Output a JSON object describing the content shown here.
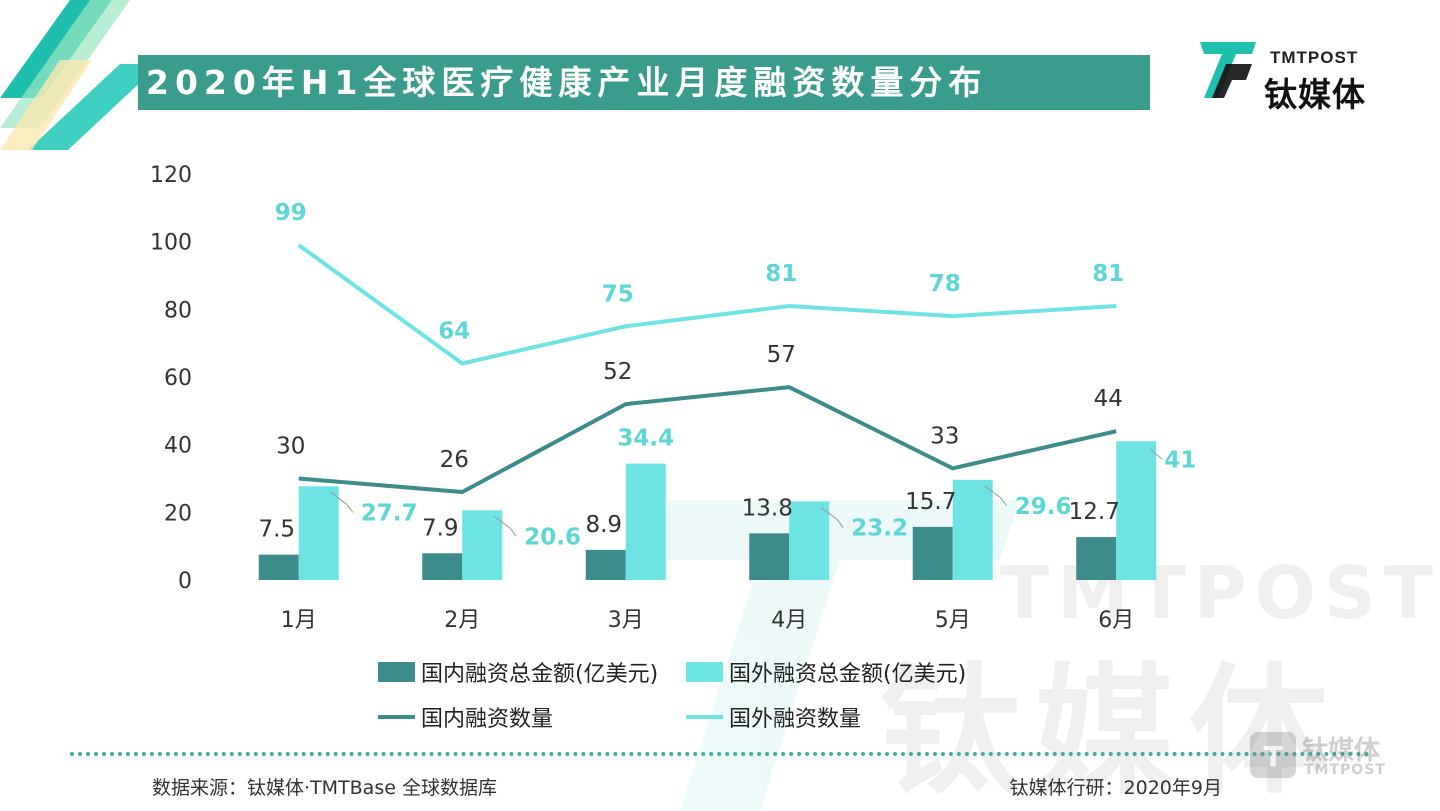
{
  "header": {
    "title": "2020年H1全球医疗健康产业月度融资数量分布"
  },
  "logo": {
    "en": "TMTPOST",
    "cn": "钛媒体"
  },
  "watermark": {
    "en": "TMTPOST",
    "cn": "钛媒体"
  },
  "colors": {
    "dark_teal": "#3d8c8c",
    "cyan": "#6ee3e3",
    "banner": "#3a9c8c",
    "accent_green": "#3fae9b"
  },
  "chart_data": {
    "type": "bar",
    "categories": [
      "1月",
      "2月",
      "3月",
      "4月",
      "5月",
      "6月"
    ],
    "ylim": [
      0,
      120
    ],
    "yticks": [
      0,
      20,
      40,
      60,
      80,
      100,
      120
    ],
    "series": [
      {
        "name": "国内融资总金额(亿美元)",
        "kind": "bar",
        "color": "#3d8c8c",
        "values": [
          7.5,
          7.9,
          8.9,
          13.8,
          15.7,
          12.7
        ]
      },
      {
        "name": "国外融资总金额(亿美元)",
        "kind": "bar",
        "color": "#6ee3e3",
        "values": [
          27.7,
          20.6,
          34.4,
          23.2,
          29.6,
          41
        ]
      },
      {
        "name": "国内融资数量",
        "kind": "line",
        "color": "#3d8c8c",
        "values": [
          30,
          26,
          52,
          57,
          33,
          44
        ]
      },
      {
        "name": "国外融资数量",
        "kind": "line",
        "color": "#6ee3e3",
        "values": [
          99,
          64,
          75,
          81,
          78,
          81
        ]
      }
    ],
    "grid": false,
    "legend": "bottom"
  },
  "footer": {
    "source": "数据来源：钛媒体·TMTBase 全球数据库",
    "credit": "钛媒体行研：2020年9月"
  }
}
